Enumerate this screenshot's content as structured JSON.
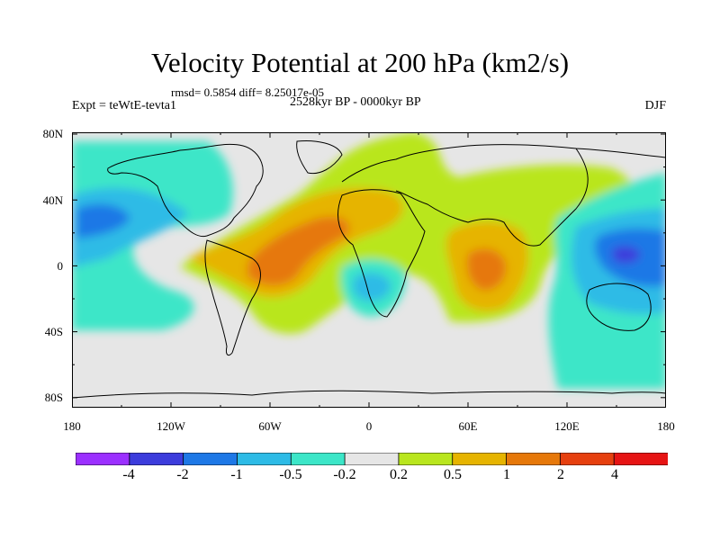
{
  "title": "Velocity Potential at 200 hPa (km2/s)",
  "stats": "rmsd= 0.5854 diff= 8.25017e-05",
  "expt": "Expt = teWtE-tevta1",
  "subtitle": "2528kyr BP - 0000kyr BP",
  "season": "DJF",
  "map_axes": {
    "lat_ticks": [
      "80N",
      "40N",
      "0",
      "40S",
      "80S"
    ],
    "lon_ticks": [
      "180",
      "120W",
      "60W",
      "0",
      "60E",
      "120E",
      "180"
    ]
  },
  "colorbar": {
    "colors": [
      "#9b30ff",
      "#3c3cdc",
      "#1e78e6",
      "#2dbbe6",
      "#3ce6c8",
      "#e6e6e6",
      "#b9e61e",
      "#e6b400",
      "#e6780a",
      "#e6400f",
      "#e61414"
    ],
    "labels": [
      "-4",
      "-2",
      "-1",
      "-0.5",
      "-0.2",
      "0.2",
      "0.5",
      "1",
      "2",
      "4"
    ]
  }
}
